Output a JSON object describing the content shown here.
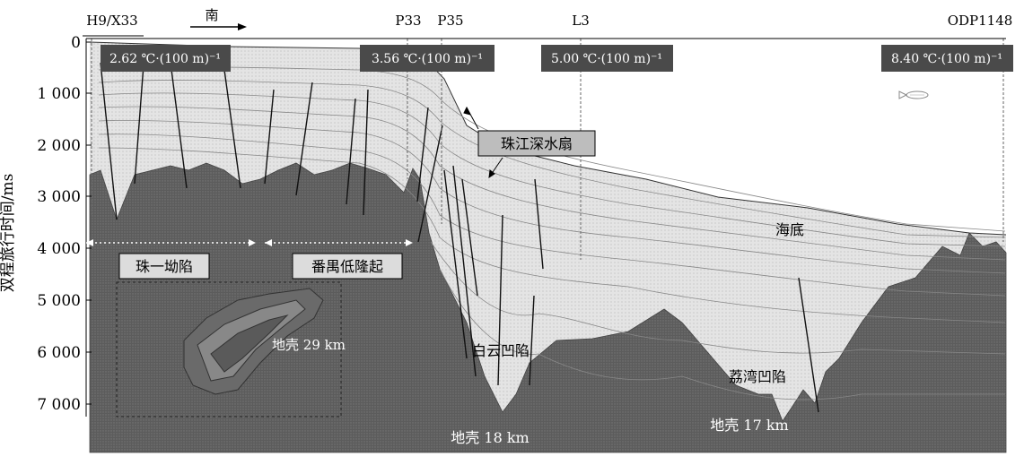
{
  "wells": [
    "H9/X33",
    "P33",
    "P35",
    "L3",
    "ODP1148"
  ],
  "direction": "南",
  "gradients": [
    "2.62 ℃·(100 m)⁻¹",
    "3.56 ℃·(100 m)⁻¹",
    "5.00 ℃·(100 m)⁻¹",
    "8.40 ℃·(100 m)⁻¹"
  ],
  "y_axis": {
    "label": "双程旅行时间/ms",
    "ticks": [
      "0",
      "1 000",
      "2 000",
      "3 000",
      "4 000",
      "5 000",
      "6 000",
      "7 000"
    ]
  },
  "annotations": {
    "fan": "珠江深水扇",
    "seafloor": "海底",
    "zone1": "珠一坳陷",
    "zone2": "番禺低隆起",
    "baiyun": "白云凹陷",
    "liwan": "荔湾凹陷",
    "crust29": "地壳 29 km",
    "crust18": "地壳 18 km",
    "crust17": "地壳 17 km"
  },
  "colors": {
    "crust": "#5a5a5a",
    "sediment": "#dedede",
    "water": "#f3f3f3",
    "label_box": "#4a4a4a",
    "fan_box": "#bdbdbd"
  }
}
